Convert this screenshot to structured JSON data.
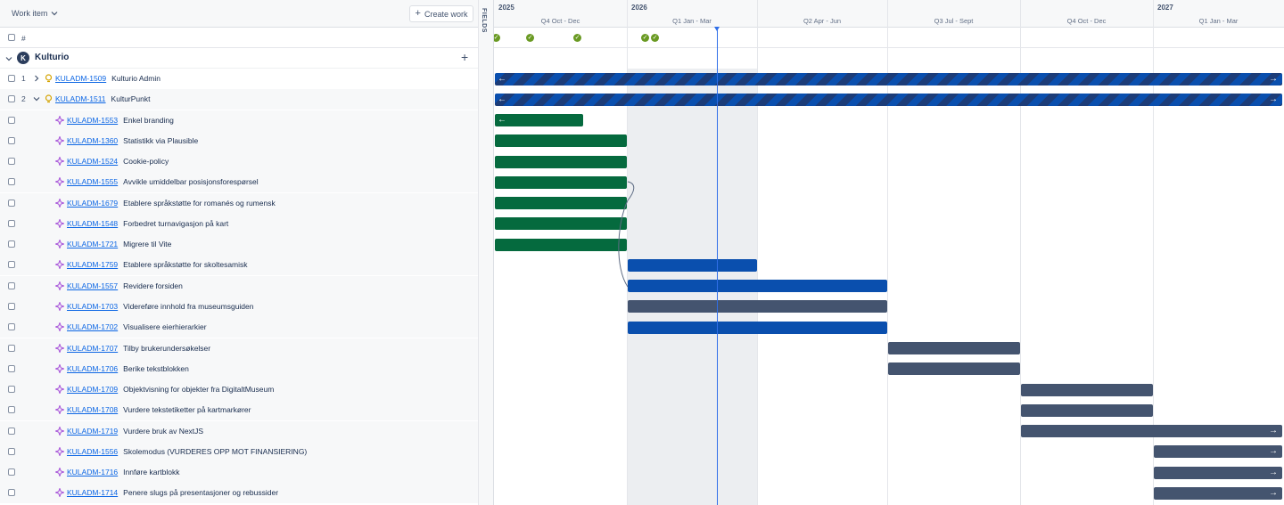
{
  "toolbar": {
    "work_item_label": "Work item",
    "create_work_label": "Create work"
  },
  "fields_label": "FIELDS",
  "header": {
    "hash_label": "#"
  },
  "group": {
    "avatar_letter": "K",
    "name": "Kulturio"
  },
  "rows": [
    {
      "num": "1",
      "key": "KULADM-1509",
      "title": "Kulturio Admin",
      "type": "epic",
      "expander": "collapsed"
    },
    {
      "num": "2",
      "key": "KULADM-1511",
      "title": "KulturPunkt",
      "type": "epic",
      "expander": "expanded"
    },
    {
      "num": "",
      "key": "KULADM-1553",
      "title": "Enkel branding",
      "type": "story"
    },
    {
      "num": "",
      "key": "KULADM-1360",
      "title": "Statistikk via Plausible",
      "type": "story"
    },
    {
      "num": "",
      "key": "KULADM-1524",
      "title": "Cookie-policy",
      "type": "story"
    },
    {
      "num": "",
      "key": "KULADM-1555",
      "title": "Avvikle umiddelbar posisjonsforespørsel",
      "type": "story"
    },
    {
      "num": "",
      "key": "KULADM-1679",
      "title": "Etablere språkstøtte for romanés og rumensk",
      "type": "story"
    },
    {
      "num": "",
      "key": "KULADM-1548",
      "title": "Forbedret turnavigasjon på kart",
      "type": "story"
    },
    {
      "num": "",
      "key": "KULADM-1721",
      "title": "Migrere til Vite",
      "type": "story"
    },
    {
      "num": "",
      "key": "KULADM-1759",
      "title": "Etablere språkstøtte for skoltesamisk",
      "type": "story"
    },
    {
      "num": "",
      "key": "KULADM-1557",
      "title": "Revidere forsiden",
      "type": "story"
    },
    {
      "num": "",
      "key": "KULADM-1703",
      "title": "Videreføre innhold fra museumsguiden",
      "type": "story"
    },
    {
      "num": "",
      "key": "KULADM-1702",
      "title": "Visualisere eierhierarkier",
      "type": "story"
    },
    {
      "num": "",
      "key": "KULADM-1707",
      "title": "Tilby brukerundersøkelser",
      "type": "story"
    },
    {
      "num": "",
      "key": "KULADM-1706",
      "title": "Berike tekstblokken",
      "type": "story"
    },
    {
      "num": "",
      "key": "KULADM-1709",
      "title": "Objektvisning for objekter fra DigitaltMuseum",
      "type": "story"
    },
    {
      "num": "",
      "key": "KULADM-1708",
      "title": "Vurdere tekstetiketter på kartmarkører",
      "type": "story"
    },
    {
      "num": "",
      "key": "KULADM-1719",
      "title": "Vurdere bruk av NextJS",
      "type": "story"
    },
    {
      "num": "",
      "key": "KULADM-1556",
      "title": "Skolemodus (VURDERES OPP MOT FINANSIERING)",
      "type": "story"
    },
    {
      "num": "",
      "key": "KULADM-1716",
      "title": "Innføre kartblokk",
      "type": "story"
    },
    {
      "num": "",
      "key": "KULADM-1714",
      "title": "Penere slugs på presentasjoner og rebussider",
      "type": "story"
    }
  ],
  "timeline": {
    "years": [
      "2025",
      "2026",
      "2027"
    ],
    "quarters": [
      "Q4 Oct - Dec",
      "Q1 Jan - Mar",
      "Q2 Apr - Jun",
      "Q3 Jul - Sept",
      "Q4 Oct - Dec",
      "Q1 Jan - Mar"
    ],
    "bars": [
      {
        "row": 0,
        "status": "in-progress-parent",
        "start_q": 0,
        "end_q": 6,
        "arrow_left": true,
        "arrow_right": true
      },
      {
        "row": 1,
        "status": "in-progress-parent",
        "start_q": 0,
        "end_q": 6,
        "arrow_left": true,
        "arrow_right": true
      },
      {
        "row": 2,
        "status": "done",
        "start_q": 0,
        "end_q": 0.67,
        "arrow_left": true
      },
      {
        "row": 3,
        "status": "done",
        "start_q": 0,
        "end_q": 1
      },
      {
        "row": 4,
        "status": "done",
        "start_q": 0,
        "end_q": 1
      },
      {
        "row": 5,
        "status": "done",
        "start_q": 0,
        "end_q": 1
      },
      {
        "row": 6,
        "status": "done",
        "start_q": 0,
        "end_q": 1
      },
      {
        "row": 7,
        "status": "done",
        "start_q": 0,
        "end_q": 1
      },
      {
        "row": 8,
        "status": "done",
        "start_q": 0,
        "end_q": 1
      },
      {
        "row": 9,
        "status": "in-progress",
        "start_q": 1,
        "end_q": 2
      },
      {
        "row": 10,
        "status": "in-progress",
        "start_q": 1,
        "end_q": 3
      },
      {
        "row": 11,
        "status": "todo",
        "start_q": 1,
        "end_q": 3
      },
      {
        "row": 12,
        "status": "in-progress",
        "start_q": 1,
        "end_q": 3
      },
      {
        "row": 13,
        "status": "todo",
        "start_q": 3,
        "end_q": 4
      },
      {
        "row": 14,
        "status": "todo",
        "start_q": 3,
        "end_q": 4
      },
      {
        "row": 15,
        "status": "todo",
        "start_q": 4,
        "end_q": 5
      },
      {
        "row": 16,
        "status": "todo",
        "start_q": 4,
        "end_q": 5
      },
      {
        "row": 17,
        "status": "todo",
        "start_q": 4,
        "end_q": 6,
        "arrow_right": true
      },
      {
        "row": 18,
        "status": "todo",
        "start_q": 5,
        "end_q": 6,
        "arrow_right": true
      },
      {
        "row": 19,
        "status": "todo",
        "start_q": 5,
        "end_q": 6,
        "arrow_right": true
      },
      {
        "row": 20,
        "status": "todo",
        "start_q": 5,
        "end_q": 6,
        "arrow_right": true
      }
    ],
    "milestones": 5,
    "colors": {
      "done": "#056a3e",
      "in-progress": "#0a4fae",
      "todo": "#44546f",
      "today": "#2f6ee8",
      "milestone": "#6a9a23"
    }
  }
}
